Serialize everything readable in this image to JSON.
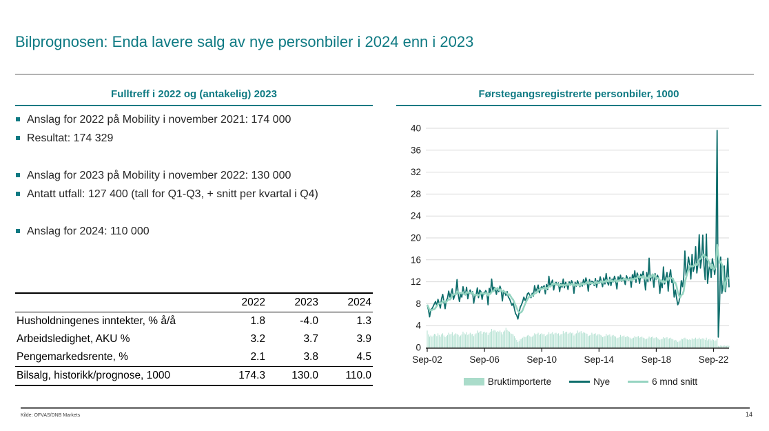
{
  "slide": {
    "title": "Bilprognosen: Enda lavere salg av nye personbiler i 2024 enn i 2023",
    "source": "Kilde: OFVAS/DNB Markets",
    "page_number": "14"
  },
  "left_panel": {
    "header": "Fulltreff i 2022 og (antakelig) 2023",
    "bullet_groups": [
      [
        "Anslag for 2022 på Mobility i november 2021: 174 000",
        "Resultat: 174 329"
      ],
      [
        "Anslag for 2023 på Mobility i november 2022: 130 000",
        "Antatt utfall: 127 400 (tall for Q1-Q3, + snitt per kvartal i Q4)"
      ],
      [
        "Anslag for 2024: 110 000"
      ]
    ],
    "table": {
      "columns": [
        "",
        "2022",
        "2023",
        "2024"
      ],
      "rows": [
        {
          "label": "Husholdningenes inntekter, % å/å",
          "values": [
            "1.8",
            "-4.0",
            "1.3"
          ],
          "emphasis": false
        },
        {
          "label": "Arbeidsledighet, AKU %",
          "values": [
            "3.2",
            "3.7",
            "3.9"
          ],
          "emphasis": false
        },
        {
          "label": "Pengemarkedsrente, %",
          "values": [
            "2.1",
            "3.8",
            "4.5"
          ],
          "emphasis": false
        },
        {
          "label": "Bilsalg, historikk/prognose, 1000",
          "values": [
            "174.3",
            "130.0",
            "110.0"
          ],
          "emphasis": true
        }
      ]
    }
  },
  "right_panel": {
    "header": "Førstegangsregistrerte personbiler, 1000"
  },
  "chart_data": {
    "type": "bar+line",
    "title": "Førstegangsregistrerte personbiler, 1000",
    "x_frequency": "monthly",
    "x_start": "Sep-2002",
    "x_end": "Oct-2023",
    "ylim": [
      0,
      40
    ],
    "yticks": [
      0,
      4,
      8,
      12,
      16,
      20,
      24,
      28,
      32,
      36,
      40
    ],
    "xticks": [
      {
        "label": "Sep-02",
        "index": 0
      },
      {
        "label": "Sep-06",
        "index": 48
      },
      {
        "label": "Sep-10",
        "index": 96
      },
      {
        "label": "Sep-14",
        "index": 144
      },
      {
        "label": "Sep-18",
        "index": 192
      },
      {
        "label": "Sep-22",
        "index": 240
      }
    ],
    "grid": "horizontal",
    "legend_position": "bottom",
    "colors": {
      "bars": "#b6e2d3",
      "nye": "#0f6e6c",
      "snitt": "#96d4c1",
      "gridline": "#d9d9d9",
      "axis": "#1a1a1a",
      "accent_teal": "#0f7a83"
    },
    "series": [
      {
        "name": "Bruktimporterte",
        "type": "bar",
        "color": "#b6e2d3",
        "values": [
          3.1,
          2.4,
          2.0,
          2.2,
          2.0,
          2.2,
          2.5,
          2.4,
          2.1,
          2.6,
          2.3,
          2.0,
          2.4,
          2.6,
          2.2,
          1.9,
          2.1,
          2.3,
          2.7,
          2.4,
          2.5,
          2.8,
          2.2,
          2.4,
          2.6,
          2.5,
          2.3,
          2.0,
          2.2,
          2.4,
          2.9,
          2.6,
          2.4,
          2.8,
          2.3,
          2.5,
          2.7,
          2.4,
          2.5,
          2.1,
          2.4,
          2.6,
          3.1,
          2.7,
          2.9,
          3.0,
          2.5,
          2.8,
          2.9,
          2.7,
          2.8,
          2.3,
          2.7,
          2.9,
          3.4,
          3.0,
          3.2,
          3.1,
          2.8,
          3.0,
          2.9,
          3.1,
          2.8,
          2.4,
          2.9,
          3.1,
          3.6,
          3.2,
          3.0,
          2.9,
          2.6,
          2.5,
          2.4,
          2.1,
          1.7,
          1.4,
          1.0,
          1.2,
          1.5,
          1.6,
          1.8,
          2.0,
          1.9,
          2.0,
          2.2,
          2.3,
          2.1,
          1.9,
          2.0,
          2.2,
          2.6,
          2.4,
          2.5,
          2.7,
          2.3,
          2.5,
          2.6,
          2.4,
          2.5,
          2.1,
          2.3,
          2.4,
          2.8,
          2.5,
          2.6,
          2.8,
          2.4,
          2.6,
          2.7,
          2.5,
          2.6,
          2.2,
          2.4,
          2.5,
          3.0,
          2.6,
          2.8,
          2.9,
          2.5,
          2.7,
          2.8,
          2.6,
          2.7,
          2.2,
          2.5,
          2.6,
          3.1,
          2.7,
          2.9,
          3.0,
          2.6,
          2.8,
          2.7,
          2.6,
          2.5,
          2.1,
          2.2,
          2.3,
          2.7,
          2.4,
          2.5,
          2.6,
          2.2,
          2.4,
          2.5,
          2.3,
          2.2,
          1.9,
          2.0,
          2.1,
          2.5,
          2.2,
          2.3,
          2.4,
          2.0,
          2.2,
          2.3,
          2.1,
          2.0,
          1.7,
          1.8,
          1.9,
          2.3,
          2.0,
          2.1,
          2.2,
          1.9,
          2.0,
          2.1,
          1.9,
          1.8,
          1.6,
          1.7,
          1.8,
          2.1,
          1.9,
          2.0,
          2.1,
          1.8,
          1.9,
          2.0,
          1.8,
          1.7,
          1.5,
          1.6,
          1.7,
          2.0,
          1.8,
          1.9,
          2.0,
          1.7,
          1.8,
          1.9,
          1.7,
          1.6,
          1.4,
          1.5,
          1.6,
          1.9,
          1.7,
          1.8,
          1.9,
          1.6,
          1.7,
          1.8,
          1.6,
          1.5,
          1.3,
          1.4,
          1.3,
          1.0,
          1.1,
          1.3,
          1.6,
          1.5,
          1.7,
          1.8,
          1.6,
          1.5,
          1.4,
          1.5,
          1.4,
          1.7,
          1.5,
          1.6,
          1.8,
          1.5,
          1.6,
          1.8,
          1.5,
          1.6,
          1.7,
          1.6,
          1.4,
          1.8,
          1.3,
          1.5,
          1.6,
          1.3,
          1.5,
          1.4,
          1.2,
          1.3,
          1.6,
          0.3,
          0.2,
          0.4,
          0.3,
          0.3,
          0.4,
          0.3,
          0.3,
          0.4,
          0.3
        ]
      },
      {
        "name": "Nye",
        "type": "line",
        "color": "#0f6e6c",
        "values": [
          7.8,
          6.9,
          5.6,
          6.9,
          7.1,
          7.5,
          8.0,
          8.4,
          7.6,
          8.8,
          8.1,
          7.2,
          8.9,
          9.7,
          8.3,
          7.1,
          8.6,
          9.0,
          10.3,
          9.2,
          9.9,
          10.7,
          8.8,
          9.5,
          10.1,
          12.4,
          9.7,
          8.4,
          9.7,
          9.2,
          11.1,
          10.1,
          9.6,
          11.0,
          8.9,
          9.9,
          10.5,
          9.8,
          10.2,
          8.1,
          9.4,
          9.6,
          10.9,
          9.1,
          10.5,
          10.2,
          8.8,
          10.0,
          9.9,
          10.4,
          10.0,
          7.8,
          10.8,
          9.8,
          12.5,
          10.4,
          11.0,
          10.7,
          9.7,
          10.9,
          10.2,
          11.2,
          10.5,
          8.5,
          10.4,
          10.0,
          9.5,
          10.2,
          9.2,
          8.9,
          8.3,
          7.7,
          8.1,
          7.2,
          6.2,
          5.9,
          5.2,
          6.3,
          7.4,
          7.8,
          8.4,
          9.2,
          8.6,
          9.0,
          9.8,
          10.0,
          9.5,
          9.1,
          9.9,
          9.4,
          11.3,
          10.3,
          10.7,
          11.4,
          10.0,
          10.8,
          11.1,
          10.9,
          11.3,
          9.8,
          11.5,
          10.6,
          13.0,
          11.1,
          11.7,
          12.3,
          10.5,
          11.6,
          11.9,
          11.4,
          11.8,
          10.2,
          11.7,
          11.0,
          12.5,
          10.9,
          11.9,
          11.6,
          10.6,
          12.0,
          11.4,
          12.2,
          11.7,
          9.9,
          11.9,
          11.2,
          12.2,
          11.6,
          11.1,
          11.8,
          11.2,
          12.4,
          11.5,
          12.7,
          11.9,
          10.3,
          12.4,
          11.5,
          12.1,
          12.0,
          11.3,
          12.6,
          11.0,
          12.2,
          11.7,
          12.9,
          12.0,
          11.1,
          12.7,
          11.6,
          13.5,
          11.9,
          11.4,
          12.8,
          11.3,
          12.5,
          12.1,
          13.0,
          12.2,
          10.7,
          12.9,
          12.3,
          13.2,
          12.1,
          12.7,
          12.4,
          11.5,
          13.1,
          12.6,
          12.3,
          12.8,
          11.0,
          13.3,
          12.5,
          14.0,
          11.9,
          13.6,
          13.0,
          11.7,
          13.4,
          12.7,
          13.9,
          12.5,
          10.5,
          13.7,
          12.0,
          16.3,
          12.2,
          13.1,
          12.9,
          11.0,
          13.5,
          12.4,
          13.2,
          12.6,
          9.9,
          12.1,
          10.9,
          14.7,
          11.6,
          12.8,
          13.7,
          10.3,
          13.0,
          14.2,
          11.9,
          12.3,
          9.2,
          10.5,
          9.1,
          7.8,
          8.3,
          9.7,
          12.2,
          11.1,
          12.7,
          17.6,
          13.1,
          14.3,
          16.5,
          15.2,
          12.5,
          17.0,
          13.9,
          14.7,
          18.4,
          13.6,
          15.3,
          20.6,
          14.5,
          16.1,
          20.5,
          15.0,
          12.4,
          20.7,
          11.7,
          14.0,
          15.4,
          12.8,
          16.2,
          14.9,
          13.3,
          15.7,
          39.6,
          1.9,
          7.3,
          16.5,
          9.9,
          11.5,
          14.9,
          10.2,
          12.7,
          16.3,
          11.0
        ]
      },
      {
        "name": "6 mnd snitt",
        "type": "line",
        "color": "#96d4c1",
        "derived": "6-month trailing moving average of series Nye"
      }
    ],
    "legend": [
      "Bruktimporterte",
      "Nye",
      "6 mnd snitt"
    ]
  }
}
